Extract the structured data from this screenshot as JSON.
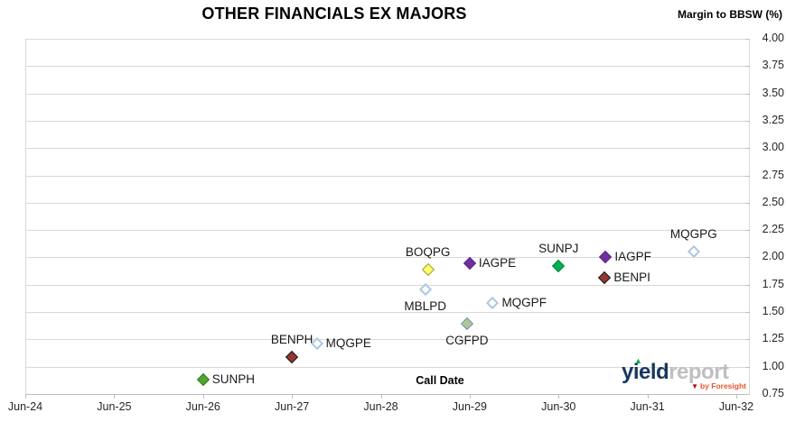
{
  "chart": {
    "title": "OTHER FINANCIALS EX MAJORS",
    "y_axis_unit_label": "Margin to BBSW (%)",
    "x_axis_title": "Call Date"
  },
  "logo": {
    "word1": "yield",
    "word2": "report",
    "byline": "by Foresight",
    "up_caret": "▲",
    "down_caret": "▼"
  },
  "colors": {
    "gridline": "#d9d9d9",
    "axis": "#bfbfbf",
    "tick_text": "#262626",
    "marker_styles": {
      "green": {
        "fill": "#4EA72E",
        "stroke": "#38761D",
        "open": false
      },
      "brightgreen": {
        "fill": "#00B050",
        "stroke": "#00863C",
        "open": false
      },
      "darkred": {
        "fill": "#943634",
        "stroke": "#1A1A1A",
        "open": false
      },
      "purple": {
        "fill": "#7030A0",
        "stroke": "#58257E",
        "open": false
      },
      "yellow": {
        "fill": "#FFFF66",
        "stroke": "#9A9C4F",
        "open": false
      },
      "lightgreen": {
        "fill": "#AFC98F",
        "stroke": "#6E91C4",
        "open": false
      },
      "openblue": {
        "fill": "#FFFFFF",
        "stroke": "#AFC6E2",
        "open": true
      }
    }
  },
  "chart_data": {
    "type": "scatter",
    "title": "OTHER FINANCIALS EX MAJORS",
    "xlabel": "Call Date",
    "ylabel": "Margin to BBSW (%)",
    "grid": "horizontal",
    "legend": "none",
    "x_ticks": [
      "Jun-24",
      "Jun-25",
      "Jun-26",
      "Jun-27",
      "Jun-28",
      "Jun-29",
      "Jun-30",
      "Jun-31",
      "Jun-32"
    ],
    "x_range_years_after_jun24": [
      0,
      8
    ],
    "y_ticks": [
      4.0,
      3.75,
      3.5,
      3.25,
      3.0,
      2.75,
      2.5,
      2.25,
      2.0,
      1.75,
      1.5,
      1.25,
      1.0,
      0.75
    ],
    "ylim": [
      0.75,
      4.0
    ],
    "points": [
      {
        "label": "SUNPH",
        "x": 2.0,
        "y": 0.88,
        "style": "green",
        "label_pos": "right"
      },
      {
        "label": "BENPH",
        "x": 3.0,
        "y": 1.09,
        "style": "darkred",
        "label_pos": "above"
      },
      {
        "label": "MQGPE",
        "x": 3.28,
        "y": 1.21,
        "style": "openblue",
        "label_pos": "right"
      },
      {
        "label": "MBLPD",
        "x": 4.5,
        "y": 1.71,
        "style": "openblue",
        "label_pos": "below"
      },
      {
        "label": "BOQPG",
        "x": 4.53,
        "y": 1.89,
        "style": "yellow",
        "label_pos": "above"
      },
      {
        "label": "CGFPD",
        "x": 4.97,
        "y": 1.39,
        "style": "lightgreen",
        "label_pos": "below"
      },
      {
        "label": "IAGPE",
        "x": 5.0,
        "y": 1.95,
        "style": "purple",
        "label_pos": "right"
      },
      {
        "label": "MQGPF",
        "x": 5.26,
        "y": 1.58,
        "style": "openblue",
        "label_pos": "right"
      },
      {
        "label": "SUNPJ",
        "x": 6.0,
        "y": 1.92,
        "style": "brightgreen",
        "label_pos": "above"
      },
      {
        "label": "BENPI",
        "x": 6.52,
        "y": 1.81,
        "style": "darkred",
        "label_pos": "right"
      },
      {
        "label": "IAGPF",
        "x": 6.53,
        "y": 2.0,
        "style": "purple",
        "label_pos": "right"
      },
      {
        "label": "MQGPG",
        "x": 7.52,
        "y": 2.05,
        "style": "openblue",
        "label_pos": "above"
      }
    ]
  }
}
